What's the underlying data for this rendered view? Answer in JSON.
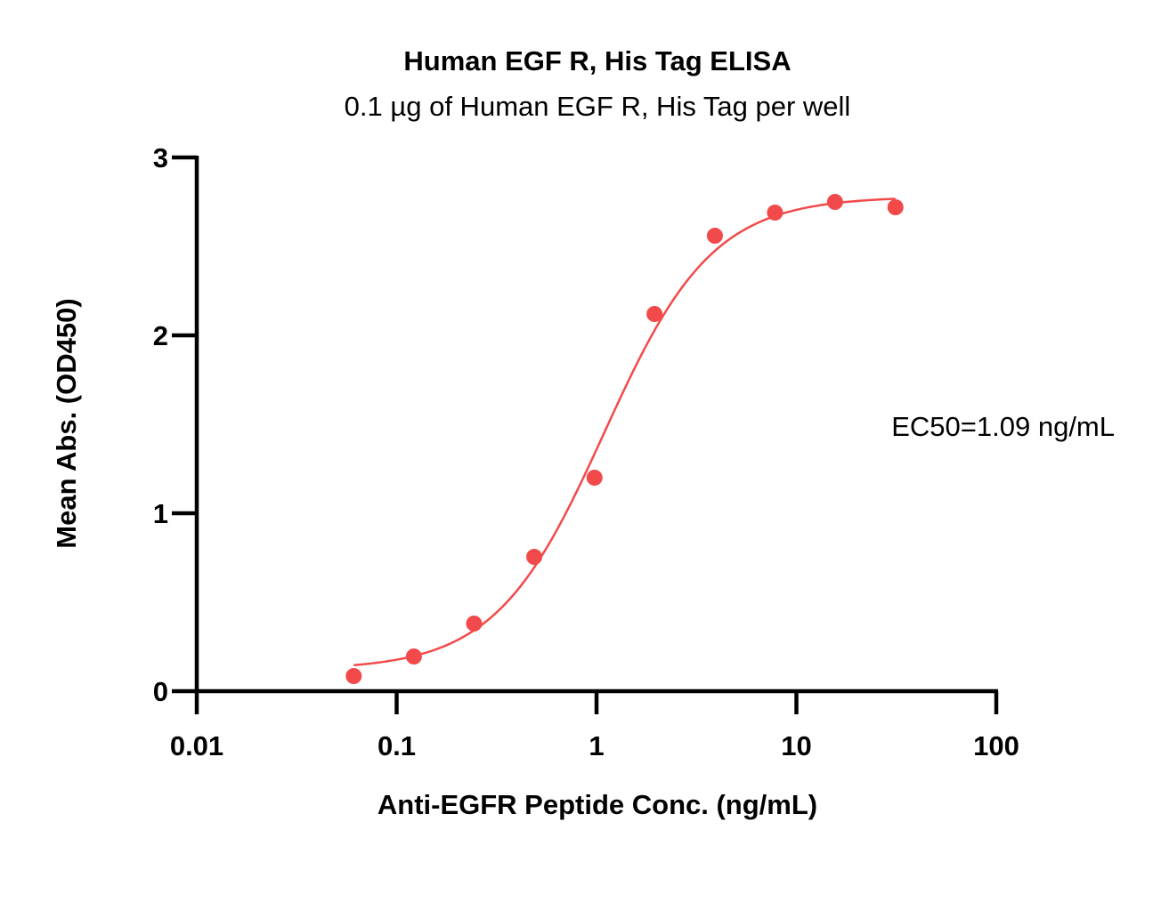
{
  "chart_data": {
    "type": "scatter",
    "title": "Human EGF R, His Tag ELISA",
    "subtitle": "0.1 µg of Human EGF R, His Tag per well",
    "xlabel": "Anti-EGFR Peptide Conc. (ng/mL)",
    "ylabel": "Mean Abs. (OD450)",
    "xscale": "log",
    "xlim": [
      0.01,
      100
    ],
    "ylim": [
      0,
      3
    ],
    "x_ticks": [
      0.01,
      0.1,
      1,
      10,
      100
    ],
    "x_tick_labels": [
      "0.01",
      "0.1",
      "1",
      "10",
      "100"
    ],
    "y_ticks": [
      0,
      1,
      2,
      3
    ],
    "y_tick_labels": [
      "0",
      "1",
      "2",
      "3"
    ],
    "grid": false,
    "series": [
      {
        "color": "#f24a4a",
        "x": [
          0.061,
          0.122,
          0.244,
          0.488,
          0.977,
          1.95,
          3.91,
          7.81,
          15.6,
          31.3
        ],
        "y": [
          0.085,
          0.195,
          0.38,
          0.755,
          1.2,
          2.12,
          2.56,
          2.69,
          2.75,
          2.72
        ]
      }
    ],
    "fit_curve": {
      "type": "4PL",
      "color": "#f24a4a",
      "bottom": 0.12,
      "top": 2.78,
      "ec50": 1.09,
      "hill": 1.6
    },
    "annotations": [
      "EC50=1.09 ng/mL"
    ]
  }
}
